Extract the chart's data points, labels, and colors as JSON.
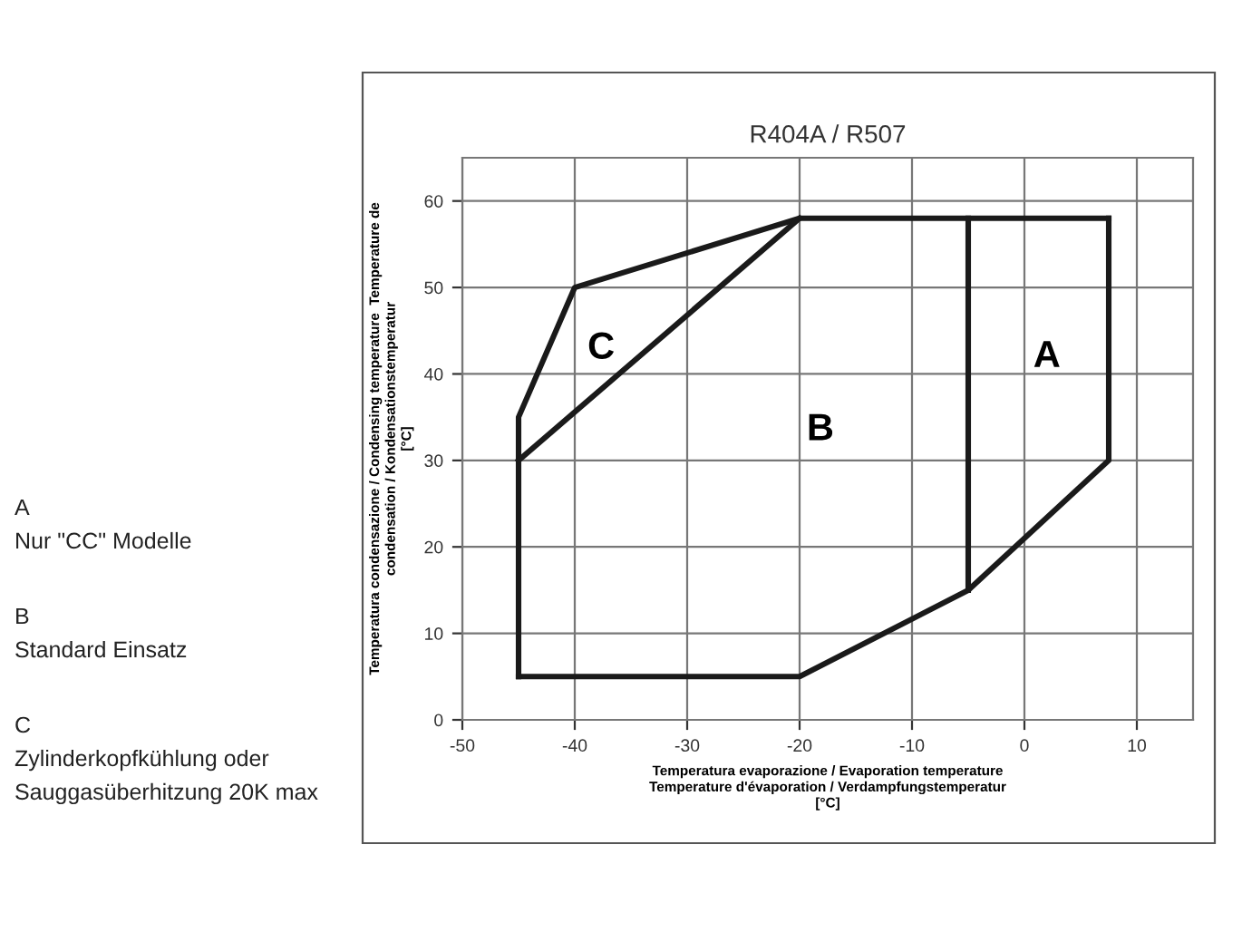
{
  "chart_data": {
    "type": "line",
    "title": "R404A / R507",
    "xlabel": "Temperatura evaporazione / Evaporation temperature\nTemperature d'évaporation / Verdampfungstemperatur\n[°C]",
    "ylabel": "Temperatura condensazione / Condensing temperature  Temperature de\ncondensation / Kondensationstemperatur\n[°C]",
    "xlim": [
      -50,
      15
    ],
    "xticks": [
      -50,
      -40,
      -30,
      -20,
      -10,
      0,
      10
    ],
    "ylim": [
      0,
      65
    ],
    "yticks": [
      0,
      10,
      20,
      30,
      40,
      50,
      60
    ],
    "grid": true,
    "marker": "none",
    "line_style": "solid",
    "series": [
      {
        "color": "#1a1a1a",
        "x": [
          -45,
          -20,
          -5,
          7.5,
          7.5
        ],
        "values": [
          5,
          5,
          15,
          30,
          58
        ]
      },
      {
        "color": "#1a1a1a",
        "x": [
          -45,
          -45,
          -40,
          -20,
          7.5
        ],
        "values": [
          5,
          35,
          50,
          58,
          58
        ]
      },
      {
        "color": "#1a1a1a",
        "x": [
          -5,
          -5
        ],
        "values": [
          15,
          58
        ]
      },
      {
        "color": "#1a1a1a",
        "x": [
          -45,
          -20
        ],
        "values": [
          30,
          58
        ]
      }
    ],
    "annotations": [
      "C",
      "B",
      "A",
      "A\nNur \"CC\" Modelle",
      "B\nStandard Einsatz",
      "C\nZylinderkopfkühlung oder\nSauggasüberhitzung 20K max"
    ]
  }
}
